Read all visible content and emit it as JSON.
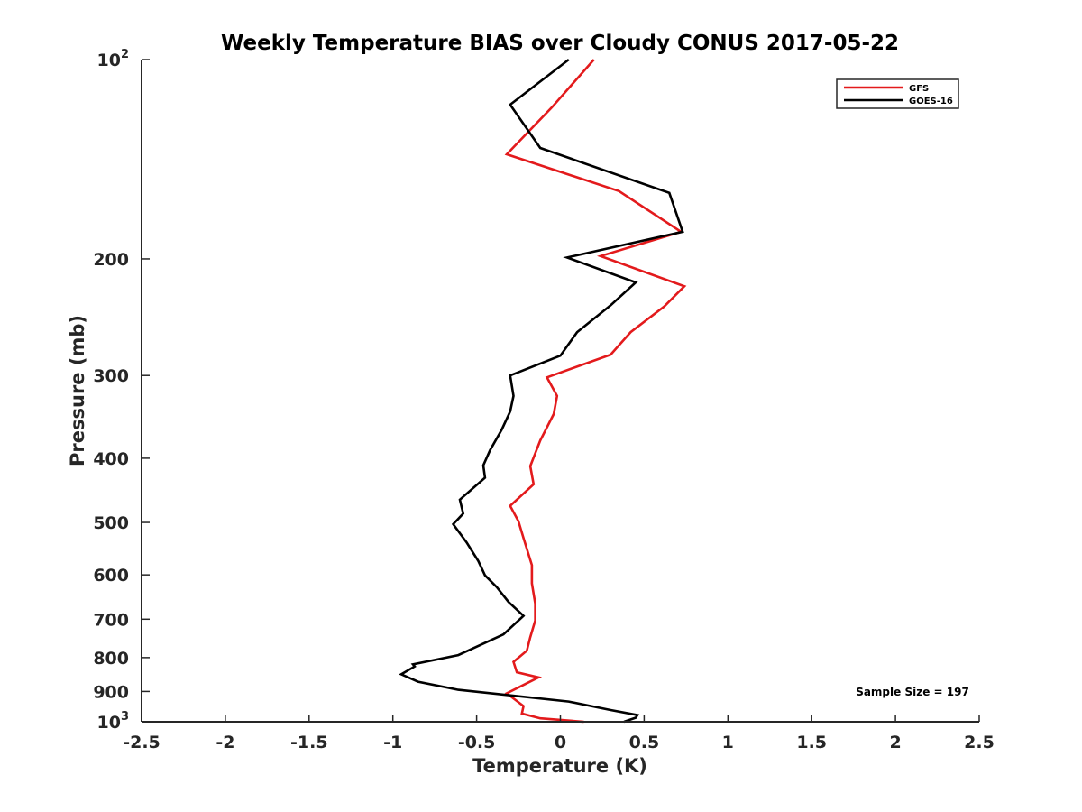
{
  "chart_data": {
    "type": "line",
    "title": "Weekly Temperature BIAS over Cloudy CONUS 2017-05-22",
    "xlabel": "Temperature (K)",
    "ylabel": "Pressure (mb)",
    "xlim": [
      -2.5,
      2.5
    ],
    "ylim": [
      100,
      1000
    ],
    "y_scale": "log",
    "y_reversed": true,
    "grid": false,
    "legend_position": "top-right",
    "x_ticks": [
      "-2.5",
      "-2",
      "-1.5",
      "-1",
      "-0.5",
      "0",
      "0.5",
      "1",
      "1.5",
      "2",
      "2.5"
    ],
    "y_ticks": [
      {
        "value": 100,
        "base": "10",
        "exp": "2"
      },
      {
        "value": 200,
        "label": "200"
      },
      {
        "value": 300,
        "label": "300"
      },
      {
        "value": 400,
        "label": "400"
      },
      {
        "value": 500,
        "label": "500"
      },
      {
        "value": 600,
        "label": "600"
      },
      {
        "value": 700,
        "label": "700"
      },
      {
        "value": 800,
        "label": "800"
      },
      {
        "value": 900,
        "label": "900"
      },
      {
        "value": 1000,
        "base": "10",
        "exp": "3"
      }
    ],
    "annotation": "Sample Size = 197",
    "series": [
      {
        "name": "GFS",
        "color": "#e31a1c",
        "points": [
          [
            0.2,
            100
          ],
          [
            -0.05,
            118
          ],
          [
            -0.32,
            139
          ],
          [
            0.35,
            158
          ],
          [
            0.72,
            182
          ],
          [
            0.24,
            198
          ],
          [
            0.74,
            220
          ],
          [
            0.62,
            236
          ],
          [
            0.42,
            258
          ],
          [
            0.3,
            279
          ],
          [
            -0.08,
            302
          ],
          [
            -0.02,
            322
          ],
          [
            -0.04,
            343
          ],
          [
            -0.12,
            376
          ],
          [
            -0.18,
            411
          ],
          [
            -0.16,
            438
          ],
          [
            -0.3,
            472
          ],
          [
            -0.25,
            498
          ],
          [
            -0.22,
            528
          ],
          [
            -0.17,
            580
          ],
          [
            -0.17,
            618
          ],
          [
            -0.15,
            663
          ],
          [
            -0.15,
            703
          ],
          [
            -0.18,
            745
          ],
          [
            -0.2,
            781
          ],
          [
            -0.28,
            812
          ],
          [
            -0.26,
            842
          ],
          [
            -0.13,
            857
          ],
          [
            -0.32,
            906
          ],
          [
            -0.22,
            947
          ],
          [
            -0.23,
            972
          ],
          [
            -0.12,
            988
          ],
          [
            0.14,
            1000
          ]
        ]
      },
      {
        "name": "GOES-16",
        "color": "#000000",
        "points": [
          [
            0.05,
            100
          ],
          [
            -0.3,
            117
          ],
          [
            -0.12,
            136
          ],
          [
            0.65,
            159
          ],
          [
            0.73,
            182
          ],
          [
            0.04,
            199
          ],
          [
            0.45,
            217
          ],
          [
            0.3,
            235
          ],
          [
            0.1,
            258
          ],
          [
            0.0,
            280
          ],
          [
            -0.3,
            300
          ],
          [
            -0.28,
            322
          ],
          [
            -0.3,
            340
          ],
          [
            -0.35,
            362
          ],
          [
            -0.42,
            389
          ],
          [
            -0.46,
            410
          ],
          [
            -0.45,
            428
          ],
          [
            -0.6,
            462
          ],
          [
            -0.58,
            485
          ],
          [
            -0.64,
            503
          ],
          [
            -0.56,
            536
          ],
          [
            -0.49,
            572
          ],
          [
            -0.45,
            601
          ],
          [
            -0.38,
            626
          ],
          [
            -0.31,
            659
          ],
          [
            -0.22,
            692
          ],
          [
            -0.34,
            738
          ],
          [
            -0.61,
            793
          ],
          [
            -0.88,
            819
          ],
          [
            -0.87,
            825
          ],
          [
            -0.95,
            848
          ],
          [
            -0.85,
            870
          ],
          [
            -0.61,
            895
          ],
          [
            0.05,
            932
          ],
          [
            0.3,
            960
          ],
          [
            0.46,
            977
          ],
          [
            0.45,
            986
          ],
          [
            0.38,
            1000
          ]
        ]
      }
    ]
  }
}
